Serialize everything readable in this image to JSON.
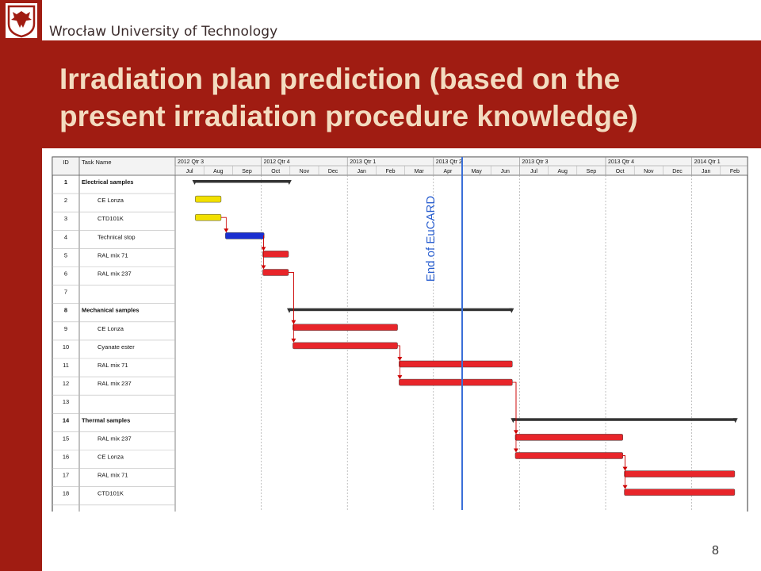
{
  "header": {
    "university": "Wrocław University of Technology",
    "title_line1": "Irradiation plan prediction (based on the",
    "title_line2": "present irradiation procedure knowledge)"
  },
  "footer": {
    "page_number": "8"
  },
  "colors": {
    "brand": "#a01c12",
    "title_text": "#f3dcc0",
    "bar_yellow": "#f2e000",
    "bar_blue": "#1a2fd0",
    "bar_red": "#e8252a",
    "summary_bar": "#333333",
    "milestone_line": "#3a6fd8"
  },
  "gantt": {
    "columns": {
      "id": "ID",
      "task": "Task Name"
    },
    "quarters": [
      "2012 Qtr 3",
      "2012 Qtr 4",
      "2013 Qtr 1",
      "2013 Qtr 2",
      "2013 Qtr 3",
      "2013 Qtr 4",
      "2014 Qtr 1"
    ],
    "months": [
      "Jul",
      "Aug",
      "Sep",
      "Oct",
      "Nov",
      "Dec",
      "Jan",
      "Feb",
      "Mar",
      "Apr",
      "May",
      "Jun",
      "Jul",
      "Aug",
      "Sep",
      "Oct",
      "Nov",
      "Dec",
      "Jan",
      "Feb"
    ],
    "milestone": {
      "label": "End of EuCARD",
      "month_index": 10.0
    },
    "tasks": [
      {
        "id": "1",
        "name": "Electrical samples",
        "summary": true,
        "start": 0.65,
        "end": 4.0
      },
      {
        "id": "2",
        "name": "CE Lonza",
        "summary": false,
        "start": 0.7,
        "end": 1.6,
        "color": "yellow"
      },
      {
        "id": "3",
        "name": "CTD101K",
        "summary": false,
        "start": 0.7,
        "end": 1.6,
        "color": "yellow"
      },
      {
        "id": "4",
        "name": "Technical stop",
        "summary": false,
        "start": 1.75,
        "end": 3.1,
        "color": "blue"
      },
      {
        "id": "5",
        "name": "RAL mix 71",
        "summary": false,
        "start": 3.05,
        "end": 3.95,
        "color": "red"
      },
      {
        "id": "6",
        "name": "RAL mix 237",
        "summary": false,
        "start": 3.05,
        "end": 3.95,
        "color": "red"
      },
      {
        "id": "7",
        "name": "",
        "summary": false
      },
      {
        "id": "8",
        "name": "Mechanical samples",
        "summary": true,
        "start": 3.95,
        "end": 11.75
      },
      {
        "id": "9",
        "name": "CE Lonza",
        "summary": false,
        "start": 4.1,
        "end": 7.75,
        "color": "red"
      },
      {
        "id": "10",
        "name": "Cyanate ester",
        "summary": false,
        "start": 4.1,
        "end": 7.75,
        "color": "red"
      },
      {
        "id": "11",
        "name": "RAL mix 71",
        "summary": false,
        "start": 7.8,
        "end": 11.75,
        "color": "red"
      },
      {
        "id": "12",
        "name": "RAL mix 237",
        "summary": false,
        "start": 7.8,
        "end": 11.75,
        "color": "red"
      },
      {
        "id": "13",
        "name": "",
        "summary": false
      },
      {
        "id": "14",
        "name": "Thermal samples",
        "summary": true,
        "start": 11.75,
        "end": 19.55
      },
      {
        "id": "15",
        "name": "RAL mix 237",
        "summary": false,
        "start": 11.85,
        "end": 15.6,
        "color": "red"
      },
      {
        "id": "16",
        "name": "CE Lonza",
        "summary": false,
        "start": 11.85,
        "end": 15.6,
        "color": "red"
      },
      {
        "id": "17",
        "name": "RAL mix 71",
        "summary": false,
        "start": 15.65,
        "end": 19.5,
        "color": "red"
      },
      {
        "id": "18",
        "name": "CTD101K",
        "summary": false,
        "start": 15.65,
        "end": 19.5,
        "color": "red"
      }
    ],
    "links": [
      {
        "from": "3",
        "to": "4"
      },
      {
        "from": "4",
        "to": "5"
      },
      {
        "from": "4",
        "to": "6"
      },
      {
        "from": "6",
        "to": "9"
      },
      {
        "from": "6",
        "to": "10"
      },
      {
        "from": "10",
        "to": "11"
      },
      {
        "from": "10",
        "to": "12"
      },
      {
        "from": "12",
        "to": "15"
      },
      {
        "from": "12",
        "to": "16"
      },
      {
        "from": "16",
        "to": "17"
      },
      {
        "from": "16",
        "to": "18"
      }
    ]
  }
}
